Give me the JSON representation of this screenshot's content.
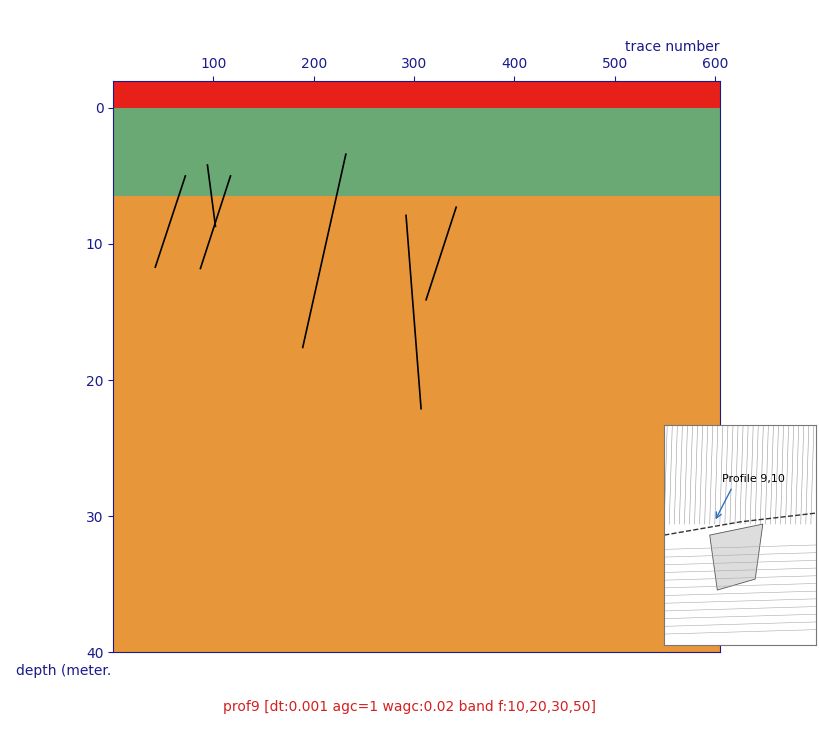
{
  "chart_data": {
    "type": "line",
    "title": "prof9 [dt:0.001 agc=1 wagc:0.02 band f:10,20,30,50]",
    "x_label": "trace number",
    "y_label": "depth (meter.",
    "xlim": [
      0,
      605
    ],
    "xticks": [
      100,
      200,
      300,
      400,
      500,
      600
    ],
    "ylim": [
      40,
      -2
    ],
    "yticks": [
      0,
      10,
      20,
      30,
      40
    ],
    "bands": [
      {
        "from": -2,
        "to": 0,
        "color": "#e8201a"
      },
      {
        "from": 0,
        "to": 6.5,
        "color": "#6aa874"
      }
    ],
    "series": [
      {
        "color": "#000000",
        "x": [
          72,
          42
        ],
        "values": [
          5.0,
          11.7
        ]
      },
      {
        "color": "#000000",
        "x": [
          94,
          102
        ],
        "values": [
          4.2,
          8.7
        ]
      },
      {
        "color": "#000000",
        "x": [
          117,
          87
        ],
        "values": [
          5.0,
          11.8
        ]
      },
      {
        "color": "#000000",
        "x": [
          232,
          189
        ],
        "values": [
          3.4,
          17.6
        ]
      },
      {
        "color": "#000000",
        "x": [
          292,
          307
        ],
        "values": [
          7.9,
          22.1
        ]
      },
      {
        "color": "#000000",
        "x": [
          342,
          312
        ],
        "values": [
          7.3,
          14.1
        ]
      }
    ],
    "annotations": [
      "Profile 9,10"
    ]
  }
}
